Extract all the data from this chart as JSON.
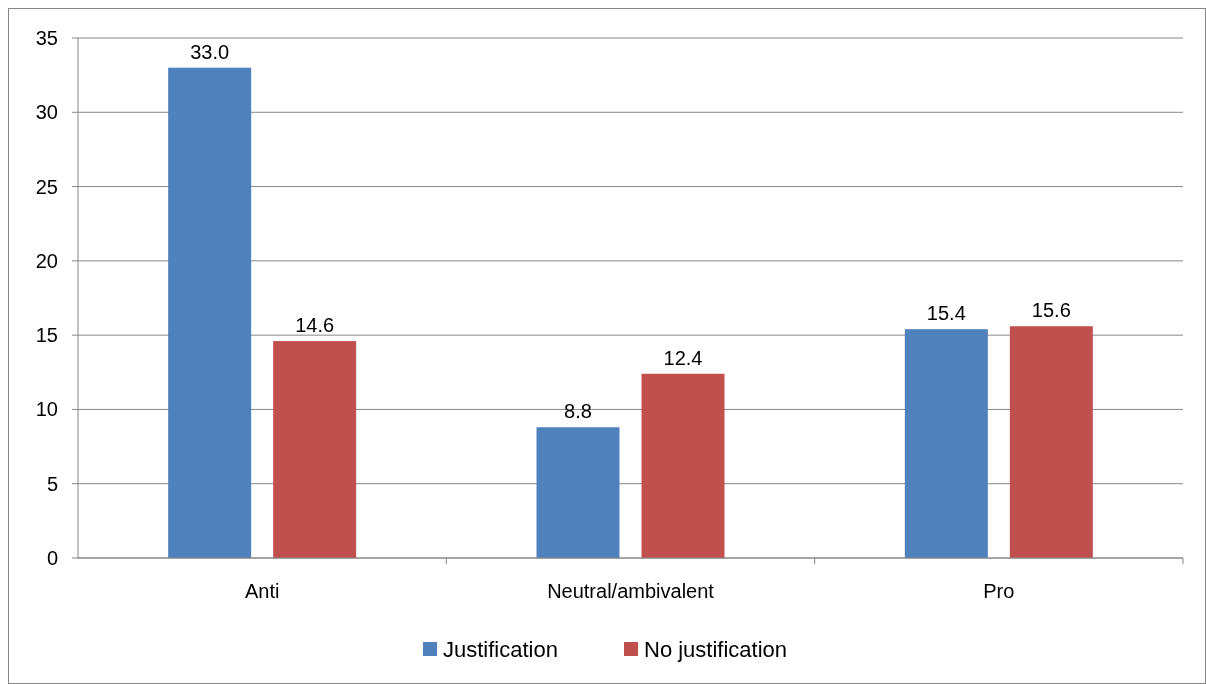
{
  "chart_data": {
    "type": "bar",
    "categories": [
      "Anti",
      "Neutral/ambivalent",
      "Pro"
    ],
    "series": [
      {
        "name": "Justification",
        "color": "#4f81bd",
        "values": [
          33.0,
          8.8,
          15.4
        ],
        "value_labels": [
          "33.0",
          "8.8",
          "15.4"
        ]
      },
      {
        "name": "No justification",
        "color": "#c0504d",
        "values": [
          14.6,
          12.4,
          15.6
        ],
        "value_labels": [
          "14.6",
          "12.4",
          "15.6"
        ]
      }
    ],
    "ylim": [
      0,
      35
    ],
    "yticks": [
      0,
      5,
      10,
      15,
      20,
      25,
      30,
      35
    ],
    "grid": "y",
    "legend": "bottom"
  }
}
